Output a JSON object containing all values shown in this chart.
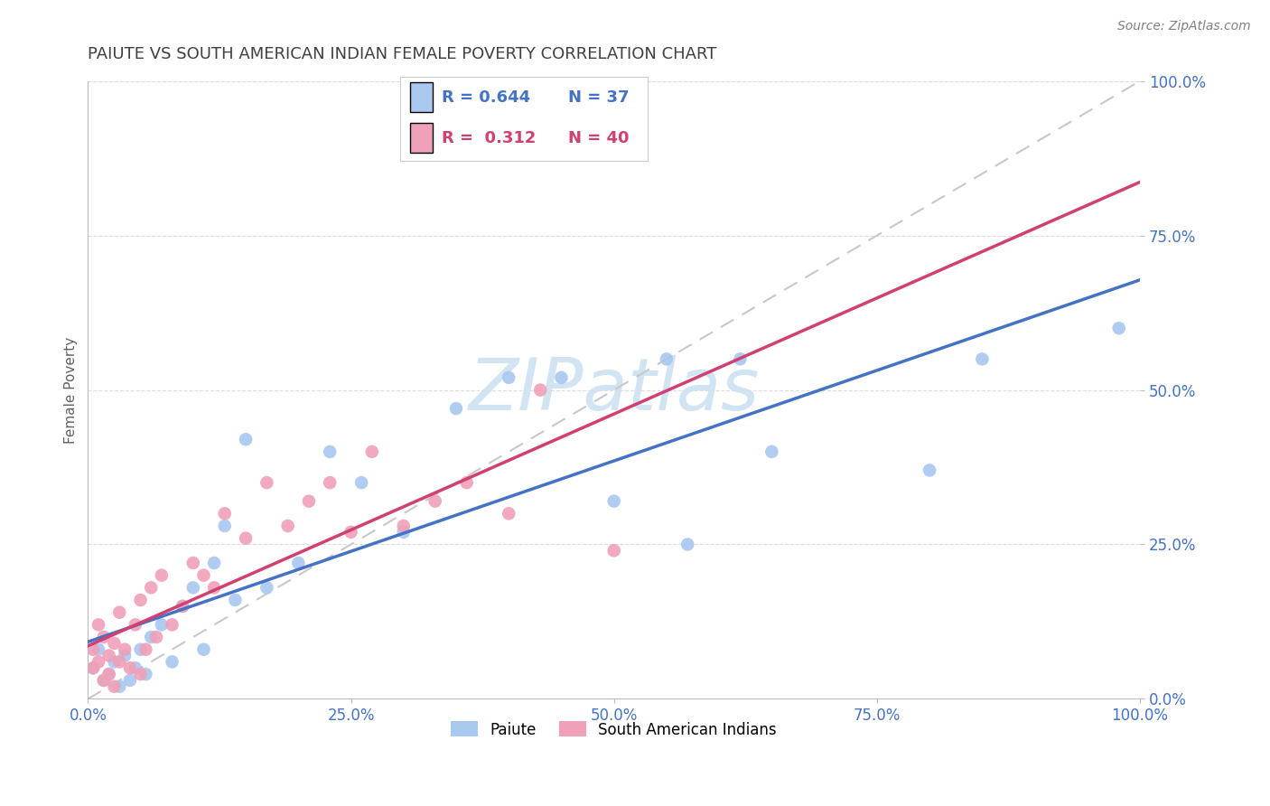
{
  "title": "PAIUTE VS SOUTH AMERICAN INDIAN FEMALE POVERTY CORRELATION CHART",
  "source": "Source: ZipAtlas.com",
  "ylabel": "Female Poverty",
  "legend_r_blue": "R = 0.644",
  "legend_n_blue": "N = 37",
  "legend_r_pink": "R =  0.312",
  "legend_n_pink": "N = 40",
  "blue_scatter_color": "#A8C8F0",
  "pink_scatter_color": "#F0A0B8",
  "blue_line_color": "#4472C4",
  "pink_line_color": "#D04070",
  "dashed_line_color": "#C8C8C8",
  "watermark_text": "ZIPatlas",
  "watermark_color": "#D0E4F4",
  "background_color": "#FFFFFF",
  "grid_color": "#DDDDDD",
  "tick_color": "#4472C4",
  "title_color": "#404040",
  "ylabel_color": "#606060",
  "source_color": "#808080",
  "paiute_x": [
    0.5,
    1,
    1.5,
    2,
    2.5,
    3,
    3.5,
    4,
    4.5,
    5,
    5.5,
    6,
    7,
    8,
    9,
    10,
    11,
    12,
    13,
    14,
    15,
    17,
    20,
    23,
    26,
    30,
    35,
    40,
    45,
    50,
    55,
    57,
    62,
    65,
    80,
    85,
    98
  ],
  "paiute_y": [
    5,
    8,
    3,
    4,
    6,
    2,
    7,
    3,
    5,
    8,
    4,
    10,
    12,
    6,
    15,
    18,
    8,
    22,
    28,
    16,
    42,
    18,
    22,
    40,
    35,
    27,
    47,
    52,
    52,
    32,
    55,
    25,
    55,
    40,
    37,
    55,
    60
  ],
  "sa_x": [
    0.5,
    0.5,
    1,
    1,
    1.5,
    1.5,
    2,
    2,
    2.5,
    2.5,
    3,
    3,
    3.5,
    4,
    4.5,
    5,
    5,
    5.5,
    6,
    6.5,
    7,
    8,
    9,
    10,
    11,
    12,
    13,
    15,
    17,
    19,
    21,
    23,
    25,
    27,
    30,
    33,
    36,
    40,
    43,
    50
  ],
  "sa_y": [
    5,
    8,
    12,
    6,
    3,
    10,
    4,
    7,
    2,
    9,
    6,
    14,
    8,
    5,
    12,
    4,
    16,
    8,
    18,
    10,
    20,
    12,
    15,
    22,
    20,
    18,
    30,
    26,
    35,
    28,
    32,
    35,
    27,
    40,
    28,
    32,
    35,
    30,
    50,
    24
  ],
  "xlim": [
    0,
    100
  ],
  "ylim": [
    0,
    100
  ],
  "tick_positions": [
    0,
    25,
    50,
    75,
    100
  ],
  "tick_labels": [
    "0.0%",
    "25.0%",
    "50.0%",
    "75.0%",
    "100.0%"
  ]
}
